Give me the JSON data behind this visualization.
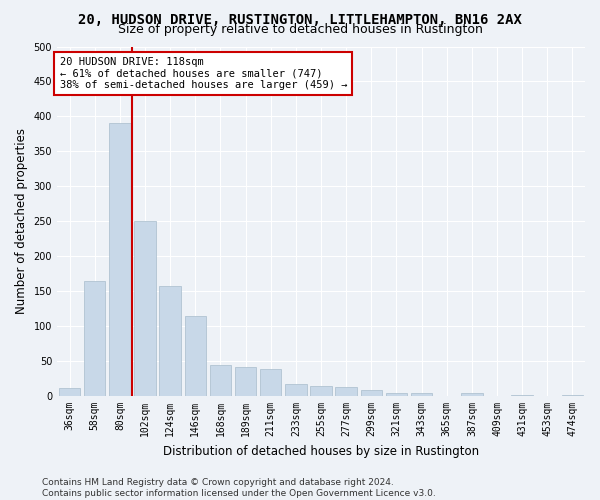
{
  "title": "20, HUDSON DRIVE, RUSTINGTON, LITTLEHAMPTON, BN16 2AX",
  "subtitle": "Size of property relative to detached houses in Rustington",
  "xlabel": "Distribution of detached houses by size in Rustington",
  "ylabel": "Number of detached properties",
  "bar_color": "#c8d8e8",
  "bar_edge_color": "#a8bccc",
  "background_color": "#eef2f7",
  "grid_color": "#ffffff",
  "categories": [
    "36sqm",
    "58sqm",
    "80sqm",
    "102sqm",
    "124sqm",
    "146sqm",
    "168sqm",
    "189sqm",
    "211sqm",
    "233sqm",
    "255sqm",
    "277sqm",
    "299sqm",
    "321sqm",
    "343sqm",
    "365sqm",
    "387sqm",
    "409sqm",
    "431sqm",
    "453sqm",
    "474sqm"
  ],
  "values": [
    12,
    165,
    390,
    250,
    158,
    115,
    44,
    42,
    38,
    17,
    15,
    13,
    8,
    4,
    4,
    0,
    4,
    0,
    1,
    0,
    1
  ],
  "property_line_label": "20 HUDSON DRIVE: 118sqm",
  "annotation_line1": "← 61% of detached houses are smaller (747)",
  "annotation_line2": "38% of semi-detached houses are larger (459) →",
  "annotation_box_color": "#ffffff",
  "annotation_border_color": "#cc0000",
  "vline_color": "#cc0000",
  "vline_x_index": 2.5,
  "ylim": [
    0,
    500
  ],
  "yticks": [
    0,
    50,
    100,
    150,
    200,
    250,
    300,
    350,
    400,
    450,
    500
  ],
  "footnote1": "Contains HM Land Registry data © Crown copyright and database right 2024.",
  "footnote2": "Contains public sector information licensed under the Open Government Licence v3.0.",
  "title_fontsize": 10,
  "subtitle_fontsize": 9,
  "xlabel_fontsize": 8.5,
  "ylabel_fontsize": 8.5,
  "annot_fontsize": 7.5,
  "tick_fontsize": 7,
  "footnote_fontsize": 6.5
}
